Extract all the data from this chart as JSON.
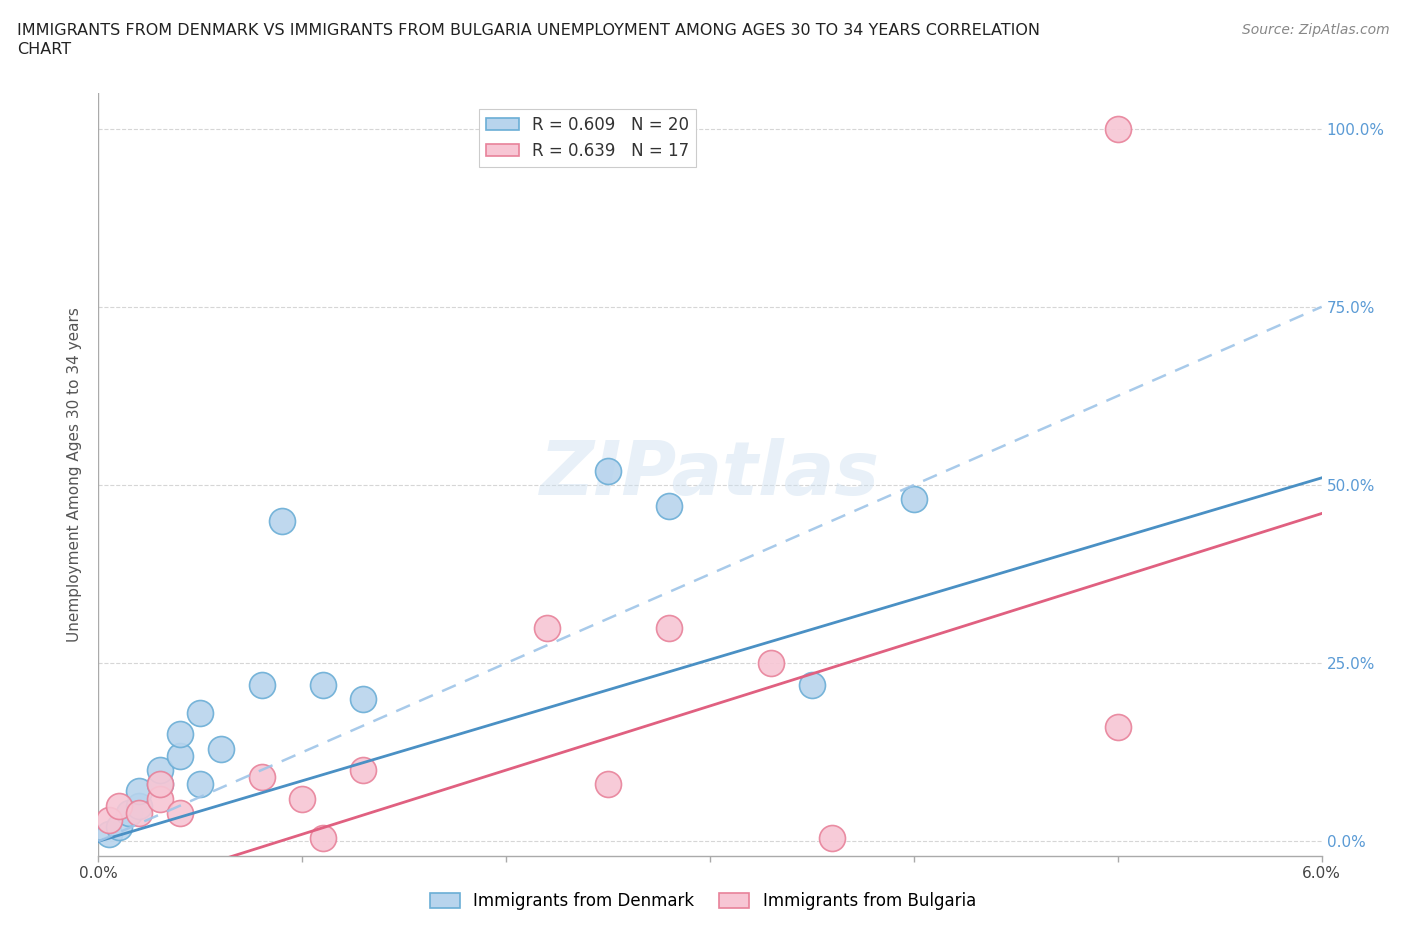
{
  "title_line1": "IMMIGRANTS FROM DENMARK VS IMMIGRANTS FROM BULGARIA UNEMPLOYMENT AMONG AGES 30 TO 34 YEARS CORRELATION",
  "title_line2": "CHART",
  "source": "Source: ZipAtlas.com",
  "ylabel": "Unemployment Among Ages 30 to 34 years",
  "xlim": [
    0.0,
    0.06
  ],
  "ylim": [
    -0.02,
    1.05
  ],
  "xticks": [
    0.0,
    0.01,
    0.02,
    0.03,
    0.04,
    0.05,
    0.06
  ],
  "xticklabels": [
    "0.0%",
    "",
    "",
    "",
    "",
    "",
    "6.0%"
  ],
  "ytick_positions": [
    0.0,
    0.25,
    0.5,
    0.75,
    1.0
  ],
  "yticklabels_right": [
    "0.0%",
    "25.0%",
    "50.0%",
    "75.0%",
    "100.0%"
  ],
  "denmark_color": "#b8d4ed",
  "denmark_edge_color": "#6baed6",
  "bulgaria_color": "#f7c6d4",
  "bulgaria_edge_color": "#e8829a",
  "denmark_line_color": "#4a90c4",
  "denmark_dash_color": "#9fc5e8",
  "bulgaria_line_color": "#e06080",
  "denmark_R": 0.609,
  "denmark_N": 20,
  "bulgaria_R": 0.639,
  "bulgaria_N": 17,
  "watermark": "ZIPatlas",
  "background_color": "#ffffff",
  "grid_color": "#cccccc",
  "denmark_x": [
    0.0005,
    0.001,
    0.0015,
    0.002,
    0.002,
    0.003,
    0.003,
    0.004,
    0.004,
    0.005,
    0.005,
    0.006,
    0.008,
    0.009,
    0.011,
    0.013,
    0.025,
    0.028,
    0.035,
    0.04
  ],
  "denmark_y": [
    0.01,
    0.02,
    0.04,
    0.05,
    0.07,
    0.08,
    0.1,
    0.12,
    0.15,
    0.08,
    0.18,
    0.13,
    0.22,
    0.45,
    0.22,
    0.2,
    0.52,
    0.47,
    0.22,
    0.48
  ],
  "bulgaria_x": [
    0.0005,
    0.001,
    0.002,
    0.003,
    0.003,
    0.004,
    0.008,
    0.01,
    0.011,
    0.013,
    0.022,
    0.025,
    0.028,
    0.033,
    0.036,
    0.05,
    0.05
  ],
  "bulgaria_y": [
    0.03,
    0.05,
    0.04,
    0.06,
    0.08,
    0.04,
    0.09,
    0.06,
    0.005,
    0.1,
    0.3,
    0.08,
    0.3,
    0.25,
    0.005,
    0.16,
    1.0
  ],
  "dk_line_intercept": 0.0,
  "dk_line_slope": 8.5,
  "bg_line_intercept": -0.08,
  "bg_line_slope": 9.0,
  "dk_dash_intercept": 0.0,
  "dk_dash_slope": 12.5
}
